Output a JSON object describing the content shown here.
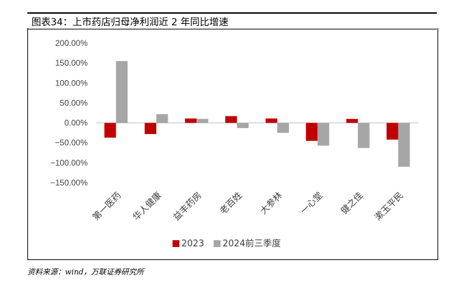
{
  "header": {
    "title": "图表34：上市药店归母净利润近 2 年同比增速"
  },
  "source": "资料来源：wind，万联证券研究所",
  "chart_data": {
    "type": "bar",
    "categories": [
      "第一医药",
      "华人健康",
      "益丰药房",
      "老百姓",
      "大参林",
      "一心堂",
      "健之佳",
      "漱玉平民"
    ],
    "series": [
      {
        "name": "2023",
        "color": "#C00000",
        "values": [
          -37,
          -28,
          11,
          17,
          11,
          -45,
          10,
          -42
        ]
      },
      {
        "name": "2024前三季度",
        "color": "#A6A6A6",
        "values": [
          155,
          22,
          10,
          -13,
          -25,
          -57,
          -63,
          -110
        ]
      }
    ],
    "yticks": [
      "200.00%",
      "150.00%",
      "100.00%",
      "50.00%",
      "0.00%",
      "−50.00%",
      "−100.00%",
      "−150.00%"
    ],
    "ylim": [
      -150,
      200
    ],
    "legend_position": "bottom"
  }
}
